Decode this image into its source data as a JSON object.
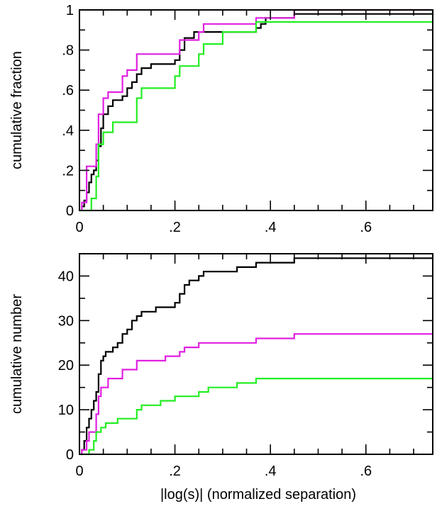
{
  "chart_data": [
    {
      "type": "line",
      "step": true,
      "xlabel": "",
      "ylabel": "cumulative fraction",
      "xlim": [
        0,
        0.74
      ],
      "ylim": [
        0,
        1
      ],
      "xticks": [
        0,
        0.2,
        0.4,
        0.6
      ],
      "xtick_labels": [
        "0",
        ".2",
        ".4",
        ".6"
      ],
      "yticks": [
        0,
        0.2,
        0.4,
        0.6,
        0.8,
        1
      ],
      "ytick_labels": [
        "0",
        ".2",
        ".4",
        ".6",
        ".8",
        "1"
      ],
      "grid": false,
      "series": [
        {
          "color": "#000000",
          "points": [
            [
              0.005,
              0
            ],
            [
              0.005,
              0.02
            ],
            [
              0.01,
              0.02
            ],
            [
              0.01,
              0.05
            ],
            [
              0.015,
              0.05
            ],
            [
              0.015,
              0.09
            ],
            [
              0.02,
              0.09
            ],
            [
              0.02,
              0.14
            ],
            [
              0.025,
              0.14
            ],
            [
              0.025,
              0.18
            ],
            [
              0.03,
              0.18
            ],
            [
              0.03,
              0.2
            ],
            [
              0.035,
              0.2
            ],
            [
              0.035,
              0.25
            ],
            [
              0.04,
              0.25
            ],
            [
              0.04,
              0.32
            ],
            [
              0.045,
              0.32
            ],
            [
              0.045,
              0.41
            ],
            [
              0.05,
              0.41
            ],
            [
              0.05,
              0.48
            ],
            [
              0.06,
              0.48
            ],
            [
              0.06,
              0.52
            ],
            [
              0.07,
              0.52
            ],
            [
              0.07,
              0.55
            ],
            [
              0.09,
              0.55
            ],
            [
              0.09,
              0.57
            ],
            [
              0.1,
              0.57
            ],
            [
              0.1,
              0.61
            ],
            [
              0.11,
              0.61
            ],
            [
              0.11,
              0.64
            ],
            [
              0.12,
              0.64
            ],
            [
              0.12,
              0.68
            ],
            [
              0.13,
              0.68
            ],
            [
              0.13,
              0.71
            ],
            [
              0.15,
              0.71
            ],
            [
              0.15,
              0.73
            ],
            [
              0.2,
              0.73
            ],
            [
              0.2,
              0.75
            ],
            [
              0.21,
              0.75
            ],
            [
              0.21,
              0.8
            ],
            [
              0.22,
              0.8
            ],
            [
              0.22,
              0.86
            ],
            [
              0.24,
              0.86
            ],
            [
              0.24,
              0.89
            ],
            [
              0.37,
              0.89
            ],
            [
              0.37,
              0.91
            ],
            [
              0.38,
              0.91
            ],
            [
              0.38,
              0.93
            ],
            [
              0.39,
              0.93
            ],
            [
              0.39,
              0.96
            ],
            [
              0.45,
              0.96
            ],
            [
              0.45,
              0.98
            ],
            [
              0.74,
              0.98
            ],
            [
              0.74,
              1.0
            ]
          ]
        },
        {
          "color": "#e020e0",
          "points": [
            [
              0.005,
              0
            ],
            [
              0.005,
              0.04
            ],
            [
              0.015,
              0.04
            ],
            [
              0.015,
              0.22
            ],
            [
              0.035,
              0.22
            ],
            [
              0.035,
              0.33
            ],
            [
              0.04,
              0.33
            ],
            [
              0.04,
              0.48
            ],
            [
              0.05,
              0.48
            ],
            [
              0.05,
              0.56
            ],
            [
              0.06,
              0.56
            ],
            [
              0.06,
              0.59
            ],
            [
              0.09,
              0.59
            ],
            [
              0.09,
              0.67
            ],
            [
              0.1,
              0.67
            ],
            [
              0.1,
              0.7
            ],
            [
              0.12,
              0.7
            ],
            [
              0.12,
              0.78
            ],
            [
              0.21,
              0.78
            ],
            [
              0.21,
              0.85
            ],
            [
              0.25,
              0.85
            ],
            [
              0.25,
              0.89
            ],
            [
              0.26,
              0.89
            ],
            [
              0.26,
              0.93
            ],
            [
              0.37,
              0.93
            ],
            [
              0.37,
              0.96
            ],
            [
              0.45,
              0.96
            ],
            [
              0.45,
              1.0
            ],
            [
              0.74,
              1.0
            ]
          ]
        },
        {
          "color": "#22ee22",
          "points": [
            [
              0,
              0
            ],
            [
              0.025,
              0
            ],
            [
              0.025,
              0.06
            ],
            [
              0.035,
              0.06
            ],
            [
              0.035,
              0.17
            ],
            [
              0.04,
              0.17
            ],
            [
              0.04,
              0.33
            ],
            [
              0.05,
              0.33
            ],
            [
              0.05,
              0.39
            ],
            [
              0.07,
              0.39
            ],
            [
              0.07,
              0.44
            ],
            [
              0.12,
              0.44
            ],
            [
              0.12,
              0.56
            ],
            [
              0.13,
              0.56
            ],
            [
              0.13,
              0.61
            ],
            [
              0.2,
              0.61
            ],
            [
              0.2,
              0.67
            ],
            [
              0.21,
              0.67
            ],
            [
              0.21,
              0.72
            ],
            [
              0.25,
              0.72
            ],
            [
              0.25,
              0.78
            ],
            [
              0.26,
              0.78
            ],
            [
              0.26,
              0.83
            ],
            [
              0.3,
              0.83
            ],
            [
              0.3,
              0.89
            ],
            [
              0.37,
              0.89
            ],
            [
              0.37,
              0.94
            ],
            [
              0.45,
              0.94
            ],
            [
              0.74,
              0.94
            ],
            [
              0.74,
              1.0
            ]
          ]
        }
      ]
    },
    {
      "type": "line",
      "step": true,
      "xlabel": "|log(s)| (normalized separation)",
      "ylabel": "cumulative number",
      "xlim": [
        0,
        0.74
      ],
      "ylim": [
        0,
        45
      ],
      "xticks": [
        0,
        0.2,
        0.4,
        0.6
      ],
      "xtick_labels": [
        "0",
        ".2",
        ".4",
        ".6"
      ],
      "yticks": [
        0,
        10,
        20,
        30,
        40
      ],
      "ytick_labels": [
        "0",
        "10",
        "20",
        "30",
        "40"
      ],
      "grid": false,
      "series": [
        {
          "color": "#000000",
          "points": [
            [
              0.005,
              0
            ],
            [
              0.005,
              1
            ],
            [
              0.01,
              1
            ],
            [
              0.01,
              3
            ],
            [
              0.015,
              3
            ],
            [
              0.015,
              6
            ],
            [
              0.02,
              6
            ],
            [
              0.02,
              8
            ],
            [
              0.025,
              8
            ],
            [
              0.025,
              10
            ],
            [
              0.03,
              10
            ],
            [
              0.03,
              12
            ],
            [
              0.035,
              12
            ],
            [
              0.035,
              14
            ],
            [
              0.04,
              14
            ],
            [
              0.04,
              18
            ],
            [
              0.045,
              18
            ],
            [
              0.045,
              21
            ],
            [
              0.05,
              21
            ],
            [
              0.05,
              22
            ],
            [
              0.055,
              22
            ],
            [
              0.055,
              23
            ],
            [
              0.07,
              23
            ],
            [
              0.07,
              24
            ],
            [
              0.08,
              24
            ],
            [
              0.08,
              25
            ],
            [
              0.09,
              25
            ],
            [
              0.09,
              27
            ],
            [
              0.1,
              27
            ],
            [
              0.1,
              28
            ],
            [
              0.11,
              28
            ],
            [
              0.11,
              30
            ],
            [
              0.12,
              30
            ],
            [
              0.12,
              31
            ],
            [
              0.13,
              31
            ],
            [
              0.13,
              32
            ],
            [
              0.16,
              32
            ],
            [
              0.16,
              33
            ],
            [
              0.2,
              33
            ],
            [
              0.2,
              34
            ],
            [
              0.21,
              34
            ],
            [
              0.21,
              36
            ],
            [
              0.22,
              36
            ],
            [
              0.22,
              38
            ],
            [
              0.23,
              38
            ],
            [
              0.23,
              39
            ],
            [
              0.25,
              39
            ],
            [
              0.25,
              40
            ],
            [
              0.26,
              40
            ],
            [
              0.26,
              41
            ],
            [
              0.33,
              41
            ],
            [
              0.33,
              42
            ],
            [
              0.37,
              42
            ],
            [
              0.37,
              43
            ],
            [
              0.45,
              43
            ],
            [
              0.45,
              44
            ],
            [
              0.74,
              44
            ],
            [
              0.74,
              45
            ]
          ]
        },
        {
          "color": "#e020e0",
          "points": [
            [
              0.005,
              0
            ],
            [
              0.005,
              1
            ],
            [
              0.015,
              1
            ],
            [
              0.015,
              3
            ],
            [
              0.02,
              3
            ],
            [
              0.02,
              5
            ],
            [
              0.035,
              5
            ],
            [
              0.035,
              9
            ],
            [
              0.04,
              9
            ],
            [
              0.04,
              13
            ],
            [
              0.045,
              13
            ],
            [
              0.045,
              15
            ],
            [
              0.06,
              15
            ],
            [
              0.06,
              17
            ],
            [
              0.09,
              17
            ],
            [
              0.09,
              19
            ],
            [
              0.12,
              19
            ],
            [
              0.12,
              21
            ],
            [
              0.18,
              21
            ],
            [
              0.18,
              22
            ],
            [
              0.21,
              22
            ],
            [
              0.21,
              23
            ],
            [
              0.22,
              23
            ],
            [
              0.22,
              24
            ],
            [
              0.25,
              24
            ],
            [
              0.25,
              25
            ],
            [
              0.37,
              25
            ],
            [
              0.37,
              26
            ],
            [
              0.45,
              26
            ],
            [
              0.45,
              27
            ],
            [
              0.74,
              27
            ]
          ]
        },
        {
          "color": "#22ee22",
          "points": [
            [
              0,
              0
            ],
            [
              0.02,
              0
            ],
            [
              0.02,
              1
            ],
            [
              0.03,
              1
            ],
            [
              0.03,
              3
            ],
            [
              0.035,
              3
            ],
            [
              0.035,
              5
            ],
            [
              0.045,
              5
            ],
            [
              0.045,
              6
            ],
            [
              0.055,
              6
            ],
            [
              0.055,
              7
            ],
            [
              0.08,
              7
            ],
            [
              0.08,
              8
            ],
            [
              0.12,
              8
            ],
            [
              0.12,
              10
            ],
            [
              0.13,
              10
            ],
            [
              0.13,
              11
            ],
            [
              0.17,
              11
            ],
            [
              0.17,
              12
            ],
            [
              0.2,
              12
            ],
            [
              0.2,
              13
            ],
            [
              0.25,
              13
            ],
            [
              0.25,
              14
            ],
            [
              0.27,
              14
            ],
            [
              0.27,
              15
            ],
            [
              0.33,
              15
            ],
            [
              0.33,
              16
            ],
            [
              0.37,
              16
            ],
            [
              0.37,
              17
            ],
            [
              0.74,
              17
            ],
            [
              0.74,
              18
            ]
          ]
        }
      ]
    }
  ]
}
